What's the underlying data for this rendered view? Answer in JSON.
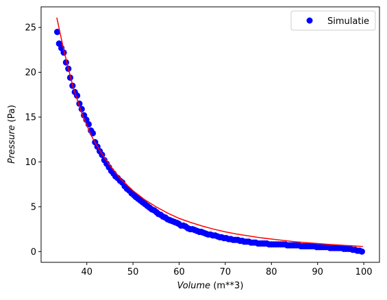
{
  "chart_data": {
    "type": "scatter",
    "xlabel_italic": "Volume",
    "xlabel_unit": " (m**3)",
    "ylabel_italic": "Pressure",
    "ylabel_unit": " (Pa)",
    "xlim": [
      30.1,
      103.4
    ],
    "ylim": [
      -1.2,
      27.3
    ],
    "xticks": [
      40,
      50,
      60,
      70,
      80,
      90,
      100
    ],
    "yticks": [
      0,
      5,
      10,
      15,
      20,
      25
    ],
    "grid": false,
    "legend_position": "top-right",
    "series": [
      {
        "name": "Simulatie",
        "kind": "markers",
        "color": "#0000ff",
        "x": [
          33.6,
          34.0,
          34.5,
          35.0,
          35.5,
          36.0,
          36.4,
          36.9,
          37.4,
          37.9,
          38.4,
          38.9,
          39.4,
          39.9,
          40.4,
          40.9,
          41.3,
          41.8,
          42.3,
          42.8,
          43.3,
          43.8,
          44.3,
          44.8,
          45.3,
          45.8,
          46.2,
          46.7,
          47.2,
          47.7,
          48.2,
          48.7,
          49.2,
          49.7,
          50.2,
          50.6,
          51.1,
          51.6,
          52.1,
          52.6,
          53.1,
          53.6,
          54.1,
          54.6,
          55.1,
          55.5,
          56.0,
          56.5,
          57.0,
          57.5,
          58.0,
          58.5,
          59.0,
          59.5,
          59.9,
          60.4,
          60.9,
          61.4,
          61.9,
          62.4,
          62.9,
          63.4,
          63.9,
          64.4,
          64.8,
          65.3,
          65.8,
          66.3,
          66.8,
          67.3,
          67.8,
          68.3,
          68.8,
          69.2,
          69.7,
          70.2,
          70.7,
          71.2,
          71.7,
          72.2,
          72.7,
          73.2,
          73.7,
          74.1,
          74.6,
          75.1,
          75.6,
          76.1,
          76.6,
          77.1,
          77.6,
          78.1,
          78.5,
          79.0,
          79.5,
          80.0,
          80.5,
          81.0,
          81.5,
          82.0,
          82.5,
          83.0,
          83.4,
          83.9,
          84.4,
          84.9,
          85.4,
          85.9,
          86.4,
          86.9,
          87.4,
          87.8,
          88.3,
          88.8,
          89.3,
          89.8,
          90.3,
          90.8,
          91.3,
          91.8,
          92.3,
          92.7,
          93.2,
          93.7,
          94.2,
          94.7,
          95.2,
          95.7,
          96.2,
          96.7,
          97.1,
          97.6,
          98.1,
          98.6,
          99.1,
          99.6
        ],
        "y": [
          24.5,
          23.2,
          22.7,
          22.2,
          21.1,
          20.4,
          19.4,
          18.5,
          17.8,
          17.4,
          16.5,
          15.9,
          15.2,
          14.7,
          14.2,
          13.5,
          13.2,
          12.2,
          11.7,
          11.2,
          10.8,
          10.2,
          9.8,
          9.4,
          9.0,
          8.7,
          8.4,
          8.2,
          7.9,
          7.7,
          7.3,
          7.0,
          6.8,
          6.5,
          6.3,
          6.1,
          5.9,
          5.7,
          5.5,
          5.3,
          5.1,
          4.9,
          4.7,
          4.6,
          4.4,
          4.2,
          4.1,
          3.9,
          3.8,
          3.6,
          3.5,
          3.4,
          3.3,
          3.2,
          3.1,
          2.9,
          2.9,
          2.8,
          2.6,
          2.5,
          2.5,
          2.4,
          2.3,
          2.2,
          2.2,
          2.1,
          2.0,
          1.9,
          1.9,
          1.8,
          1.8,
          1.7,
          1.6,
          1.6,
          1.5,
          1.5,
          1.4,
          1.4,
          1.3,
          1.3,
          1.3,
          1.2,
          1.2,
          1.1,
          1.1,
          1.1,
          1.0,
          1.0,
          1.0,
          0.9,
          0.9,
          0.9,
          0.9,
          0.9,
          0.8,
          0.8,
          0.8,
          0.8,
          0.8,
          0.8,
          0.8,
          0.8,
          0.7,
          0.7,
          0.7,
          0.7,
          0.7,
          0.7,
          0.6,
          0.6,
          0.6,
          0.6,
          0.6,
          0.6,
          0.6,
          0.5,
          0.5,
          0.5,
          0.5,
          0.5,
          0.5,
          0.4,
          0.4,
          0.4,
          0.4,
          0.4,
          0.4,
          0.3,
          0.3,
          0.3,
          0.3,
          0.2,
          0.2,
          0.1,
          0.1,
          0.0
        ]
      },
      {
        "kind": "line",
        "color": "#ff0000",
        "x": [
          33.5,
          35,
          37,
          39,
          41,
          43,
          45,
          47.5,
          50,
          52.5,
          55,
          57.5,
          60,
          62.5,
          65,
          67.5,
          70,
          72.5,
          75,
          77.5,
          80,
          82.5,
          85,
          87.5,
          90,
          92.5,
          95,
          97.5,
          99.8
        ],
        "y": [
          26.1,
          22.5,
          18.4,
          15.3,
          12.9,
          11.1,
          9.6,
          8.0,
          6.8,
          5.8,
          5.0,
          4.3,
          3.7,
          3.25,
          2.85,
          2.5,
          2.2,
          1.95,
          1.75,
          1.55,
          1.4,
          1.25,
          1.1,
          1.0,
          0.9,
          0.8,
          0.72,
          0.64,
          0.57
        ]
      }
    ]
  }
}
